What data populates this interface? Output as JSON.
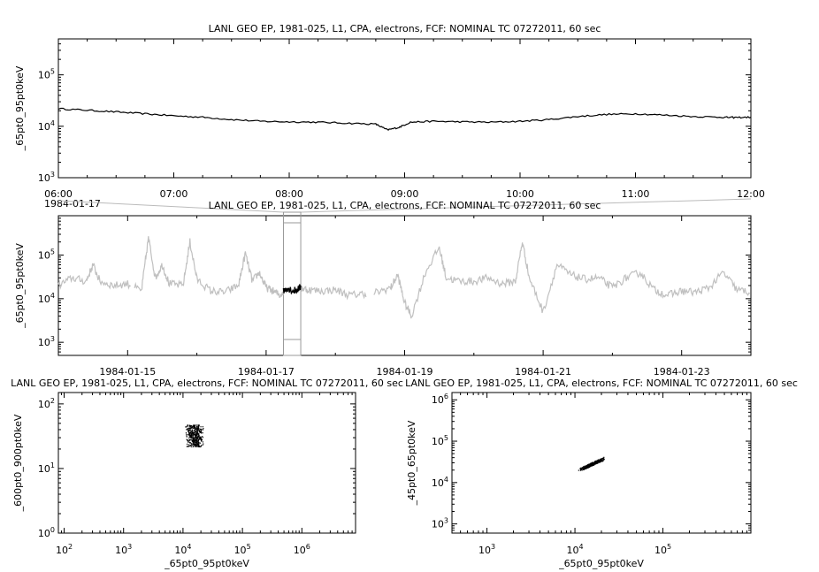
{
  "chart_data": [
    {
      "id": "timeseries-zoom",
      "type": "line",
      "title": "LANL GEO EP, 1981-025, L1, CPA, electrons, FCF: NOMINAL TC 07272011, 60 sec",
      "ylabel": "_65pt0_95pt0keV",
      "xlabel": "",
      "yscale": "log",
      "ylim": [
        1000,
        500000
      ],
      "y_ticks": [
        {
          "base": "10",
          "exp": "3",
          "value": 1000
        },
        {
          "base": "10",
          "exp": "4",
          "value": 10000
        },
        {
          "base": "10",
          "exp": "5",
          "value": 100000
        }
      ],
      "x_unit": "hours",
      "xlim": [
        6,
        12
      ],
      "x_ticks": [
        {
          "label": "06:00",
          "value": 6
        },
        {
          "label": "07:00",
          "value": 7
        },
        {
          "label": "08:00",
          "value": 8
        },
        {
          "label": "09:00",
          "value": 9
        },
        {
          "label": "10:00",
          "value": 10
        },
        {
          "label": "11:00",
          "value": 11
        },
        {
          "label": "12:00",
          "value": 12
        }
      ],
      "date_label": "1984-01-17",
      "color": "#000000",
      "series": [
        {
          "x": [
            6.0,
            6.25,
            6.5,
            6.75,
            7.0,
            7.25,
            7.5,
            7.75,
            8.0,
            8.25,
            8.5,
            8.75,
            8.85,
            8.95,
            9.05,
            9.25,
            9.5,
            9.75,
            10.0,
            10.25,
            10.5,
            10.75,
            11.0,
            11.25,
            11.5,
            11.75,
            11.85,
            12.0
          ],
          "y": [
            22000,
            20500,
            19000,
            17500,
            16000,
            15000,
            13500,
            12500,
            12200,
            12000,
            11500,
            11000,
            8500,
            9500,
            12000,
            12500,
            12200,
            12000,
            12500,
            13500,
            15500,
            17000,
            17500,
            16500,
            15500,
            15000,
            14800,
            15000
          ]
        }
      ]
    },
    {
      "id": "timeseries-overview",
      "type": "line",
      "title": "LANL GEO EP, 1981-025, L1, CPA, electrons, FCF: NOMINAL TC 07272011, 60 sec",
      "ylabel": "_65pt0_95pt0keV",
      "xlabel": "",
      "yscale": "log",
      "ylim": [
        500,
        800000
      ],
      "y_ticks": [
        {
          "base": "10",
          "exp": "3",
          "value": 1000
        },
        {
          "base": "10",
          "exp": "4",
          "value": 10000
        },
        {
          "base": "10",
          "exp": "5",
          "value": 100000
        }
      ],
      "x_unit": "days since 1984-01-14",
      "xlim": [
        0,
        10
      ],
      "x_ticks": [
        {
          "label": "1984-01-15",
          "value": 1
        },
        {
          "label": "1984-01-17",
          "value": 3
        },
        {
          "label": "1984-01-19",
          "value": 5
        },
        {
          "label": "1984-01-21",
          "value": 7
        },
        {
          "label": "1984-01-23",
          "value": 9
        }
      ],
      "highlight_range": [
        3.25,
        3.5
      ],
      "context_color": "#c0c0c0",
      "highlight_color": "#000000",
      "series": [
        {
          "x": [
            0.0,
            0.2,
            0.4,
            0.5,
            0.6,
            0.8,
            1.0,
            1.2,
            1.3,
            1.4,
            1.5,
            1.6,
            1.8,
            1.9,
            2.0,
            2.2,
            2.4,
            2.6,
            2.7,
            2.8,
            2.9,
            3.0,
            3.1,
            3.2,
            3.3,
            3.4,
            3.5,
            3.6,
            3.8,
            4.0,
            4.2,
            4.4,
            4.6,
            4.8,
            4.9,
            5.0,
            5.1,
            5.3,
            5.5,
            5.6,
            5.8,
            6.0,
            6.2,
            6.4,
            6.6,
            6.7,
            6.8,
            7.0,
            7.2,
            7.4,
            7.6,
            7.8,
            8.0,
            8.2,
            8.4,
            8.6,
            8.8,
            9.0,
            9.2,
            9.4,
            9.6,
            9.8,
            10.0
          ],
          "y": [
            20000,
            30000,
            25000,
            60000,
            25000,
            20000,
            22000,
            15000,
            250000,
            30000,
            60000,
            22000,
            20000,
            200000,
            28000,
            15000,
            14000,
            20000,
            110000,
            25000,
            40000,
            18000,
            15000,
            12000,
            18000,
            15000,
            18000,
            16000,
            15000,
            16000,
            12000,
            13000,
            14000,
            18000,
            35000,
            8000,
            4000,
            40000,
            150000,
            30000,
            25000,
            25000,
            30000,
            22000,
            25000,
            200000,
            30000,
            5000,
            60000,
            35000,
            28000,
            30000,
            18000,
            30000,
            40000,
            16000,
            12000,
            15000,
            14000,
            18000,
            40000,
            16000,
            14000
          ]
        }
      ]
    },
    {
      "id": "scatter-600",
      "type": "scatter",
      "title": "LANL GEO EP, 1981-025, L1, CPA, electrons, FCF: NOMINAL TC 07272011, 60 sec",
      "xlabel": "_65pt0_95pt0keV",
      "ylabel": "_600pt0_900pt0keV",
      "xscale": "log",
      "yscale": "log",
      "xlim": [
        80,
        8000000
      ],
      "ylim": [
        1,
        150
      ],
      "x_ticks": [
        {
          "base": "10",
          "exp": "2",
          "value": 100
        },
        {
          "base": "10",
          "exp": "3",
          "value": 1000
        },
        {
          "base": "10",
          "exp": "4",
          "value": 10000
        },
        {
          "base": "10",
          "exp": "5",
          "value": 100000
        },
        {
          "base": "10",
          "exp": "6",
          "value": 1000000
        }
      ],
      "y_ticks": [
        {
          "base": "10",
          "exp": "0",
          "value": 1
        },
        {
          "base": "10",
          "exp": "1",
          "value": 10
        },
        {
          "base": "10",
          "exp": "2",
          "value": 100
        }
      ],
      "x_range": [
        8000,
        22000
      ],
      "y_range": [
        22,
        48
      ]
    },
    {
      "id": "scatter-45",
      "type": "scatter",
      "title": "LANL GEO EP, 1981-025, L1, CPA, electrons, FCF: NOMINAL TC 07272011, 60 sec",
      "xlabel": "_65pt0_95pt0keV",
      "ylabel": "_45pt0_65pt0keV",
      "xscale": "log",
      "yscale": "log",
      "xlim": [
        400,
        1000000
      ],
      "ylim": [
        600,
        1500000
      ],
      "x_ticks": [
        {
          "base": "10",
          "exp": "3",
          "value": 1000
        },
        {
          "base": "10",
          "exp": "4",
          "value": 10000
        },
        {
          "base": "10",
          "exp": "5",
          "value": 100000
        }
      ],
      "y_ticks": [
        {
          "base": "10",
          "exp": "3",
          "value": 1000
        },
        {
          "base": "10",
          "exp": "4",
          "value": 10000
        },
        {
          "base": "10",
          "exp": "5",
          "value": 100000
        },
        {
          "base": "10",
          "exp": "6",
          "value": 1000000
        }
      ],
      "x_range": [
        8000,
        22000
      ],
      "y_range": [
        15000,
        40000
      ]
    }
  ]
}
